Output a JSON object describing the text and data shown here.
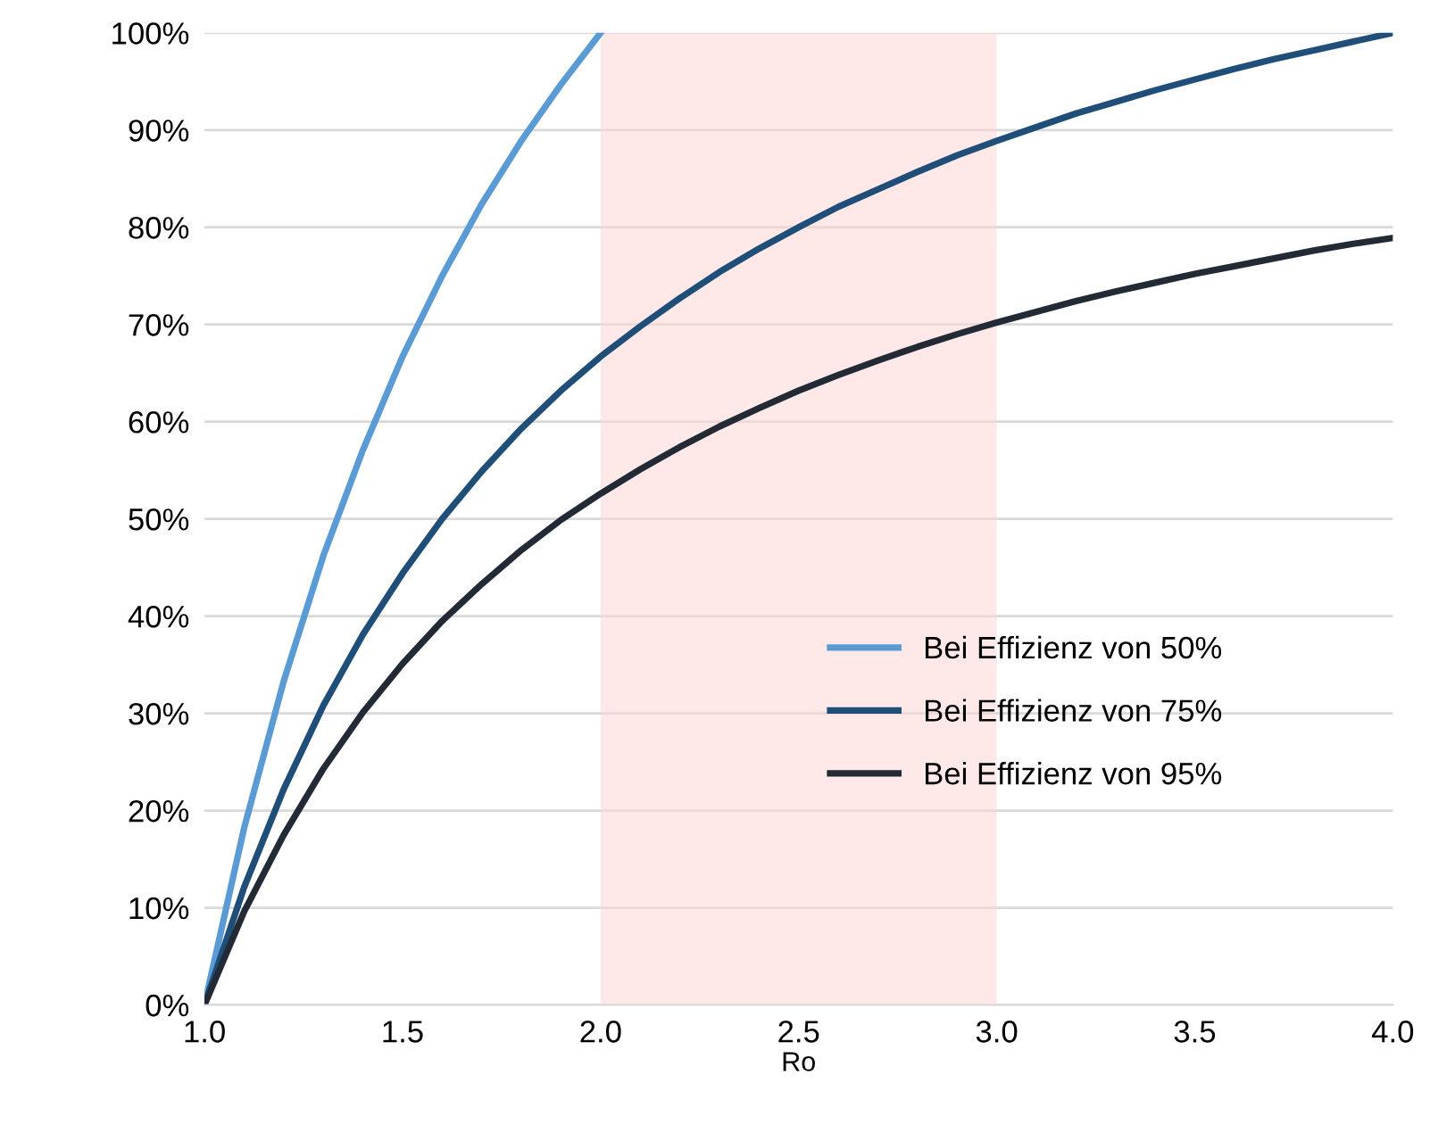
{
  "chart_data": {
    "type": "line",
    "xlabel": "Ro",
    "x": [
      1.0,
      1.1,
      1.2,
      1.3,
      1.4,
      1.5,
      1.6,
      1.7,
      1.8,
      1.9,
      2.0,
      2.1,
      2.2,
      2.3,
      2.4,
      2.5,
      2.6,
      2.7,
      2.8,
      2.9,
      3.0,
      3.1,
      3.2,
      3.3,
      3.4,
      3.5,
      3.6,
      3.7,
      3.8,
      3.9,
      4.0
    ],
    "series": [
      {
        "name": "Bei Effizienz von 50%",
        "color": "#5b9bd5",
        "x": [
          1.0,
          1.1,
          1.2,
          1.3,
          1.4,
          1.5,
          1.6,
          1.7,
          1.8,
          1.9,
          2.0
        ],
        "values": [
          0,
          18.2,
          33.3,
          46.2,
          57.1,
          66.7,
          75.0,
          82.4,
          88.9,
          94.7,
          100
        ]
      },
      {
        "name": "Bei Effizienz von 75%",
        "color": "#1f4e79",
        "values": [
          0,
          12.1,
          22.2,
          30.8,
          38.1,
          44.4,
          50.0,
          54.9,
          59.3,
          63.2,
          66.7,
          69.8,
          72.7,
          75.4,
          77.8,
          80.0,
          82.1,
          83.9,
          85.7,
          87.4,
          88.9,
          90.3,
          91.7,
          92.9,
          94.1,
          95.2,
          96.3,
          97.3,
          98.2,
          99.1,
          100
        ]
      },
      {
        "name": "Bei Effizienz von 95%",
        "color": "#222a35",
        "values": [
          0,
          9.6,
          17.5,
          24.3,
          30.1,
          35.1,
          39.5,
          43.3,
          46.8,
          49.9,
          52.6,
          55.1,
          57.4,
          59.5,
          61.4,
          63.2,
          64.8,
          66.3,
          67.7,
          69.0,
          70.2,
          71.3,
          72.4,
          73.4,
          74.3,
          75.2,
          76.0,
          76.8,
          77.6,
          78.3,
          78.9
        ]
      }
    ],
    "xlim": [
      1.0,
      4.0
    ],
    "ylim": [
      0,
      100
    ],
    "xticks": [
      {
        "value": 1.0,
        "label": "1.0"
      },
      {
        "value": 1.5,
        "label": "1.5"
      },
      {
        "value": 2.0,
        "label": "2.0"
      },
      {
        "value": 2.5,
        "label": "2.5"
      },
      {
        "value": 3.0,
        "label": "3.0"
      },
      {
        "value": 3.5,
        "label": "3.5"
      },
      {
        "value": 4.0,
        "label": "4.0"
      }
    ],
    "yticks": [
      {
        "value": 0,
        "label": "0%"
      },
      {
        "value": 10,
        "label": "10%"
      },
      {
        "value": 20,
        "label": "20%"
      },
      {
        "value": 30,
        "label": "30%"
      },
      {
        "value": 40,
        "label": "40%"
      },
      {
        "value": 50,
        "label": "50%"
      },
      {
        "value": 60,
        "label": "60%"
      },
      {
        "value": 70,
        "label": "70%"
      },
      {
        "value": 80,
        "label": "80%"
      },
      {
        "value": 90,
        "label": "90%"
      },
      {
        "value": 100,
        "label": "100%"
      }
    ],
    "bands": [
      {
        "axis": "x",
        "from": 2.0,
        "to": 3.0,
        "color": "#ffd6d6"
      }
    ],
    "grid": "y",
    "legend": "center right"
  }
}
